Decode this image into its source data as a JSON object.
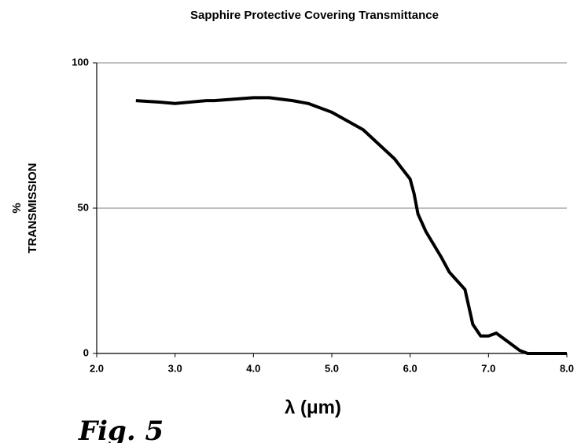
{
  "chart_data": {
    "type": "line",
    "title": "Sapphire Protective Covering Transmittance",
    "ylabel": [
      "%",
      "TRANSMISSION"
    ],
    "xlabel": "λ (μm)",
    "annotation": "Fig. 5",
    "x": [
      2.5,
      2.8,
      3.0,
      3.4,
      3.5,
      4.0,
      4.2,
      4.5,
      4.7,
      5.0,
      5.2,
      5.4,
      5.6,
      5.8,
      6.0,
      6.05,
      6.1,
      6.2,
      6.4,
      6.5,
      6.6,
      6.7,
      6.8,
      6.9,
      7.0,
      7.1,
      7.2,
      7.3,
      7.4,
      7.5,
      8.0
    ],
    "series": [
      {
        "color": "#000000",
        "values": [
          87,
          86.5,
          86,
          87,
          87,
          88,
          88,
          87,
          86,
          83,
          80,
          77,
          72,
          67,
          60,
          55,
          48,
          42,
          33,
          28,
          25,
          22,
          10,
          6,
          6,
          7,
          5,
          3,
          1,
          0,
          0
        ]
      }
    ],
    "xlim": [
      2,
      8
    ],
    "xticks": [
      {
        "value": 2,
        "label": "2.0"
      },
      {
        "value": 3,
        "label": "3.0"
      },
      {
        "value": 4,
        "label": "4.0"
      },
      {
        "value": 5,
        "label": "5.0"
      },
      {
        "value": 6,
        "label": "6.0"
      },
      {
        "value": 7,
        "label": "7.0"
      },
      {
        "value": 8,
        "label": "8.0"
      }
    ],
    "ylim": [
      0,
      100
    ],
    "yticks": [
      0,
      50,
      100
    ],
    "grid": true
  }
}
